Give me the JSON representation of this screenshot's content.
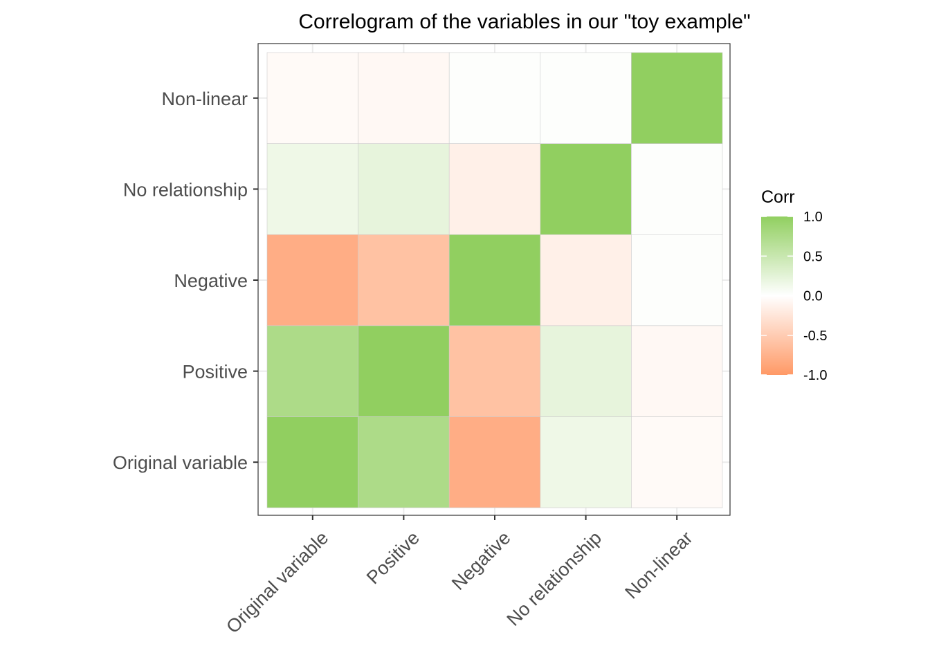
{
  "chart_data": {
    "type": "heatmap",
    "title": "Correlogram of the variables in our \"toy example\"",
    "xlabel": "",
    "ylabel": "",
    "x_categories": [
      "Original variable",
      "Positive",
      "Negative",
      "No relationship",
      "Non-linear"
    ],
    "y_categories": [
      "Original variable",
      "Positive",
      "Negative",
      "No relationship",
      "Non-linear"
    ],
    "matrix": [
      [
        1.0,
        0.75,
        -0.8,
        0.15,
        -0.05
      ],
      [
        0.75,
        1.0,
        -0.6,
        0.22,
        -0.07
      ],
      [
        -0.8,
        -0.6,
        1.0,
        -0.15,
        0.02
      ],
      [
        0.15,
        0.22,
        -0.15,
        1.0,
        0.02
      ],
      [
        -0.05,
        -0.07,
        0.02,
        0.02,
        1.0
      ]
    ],
    "legend": {
      "title": "Corr",
      "ticks": [
        1.0,
        0.5,
        0.0,
        -0.5,
        -1.0
      ],
      "tick_labels": [
        "1.0",
        "0.5",
        "0.0",
        "-0.5",
        "-1.0"
      ],
      "range": [
        -1.0,
        1.0
      ],
      "placement": "right"
    },
    "colors": {
      "low": "#ff9966",
      "mid": "#ffffff",
      "high": "#91cf60"
    },
    "grid": true
  }
}
